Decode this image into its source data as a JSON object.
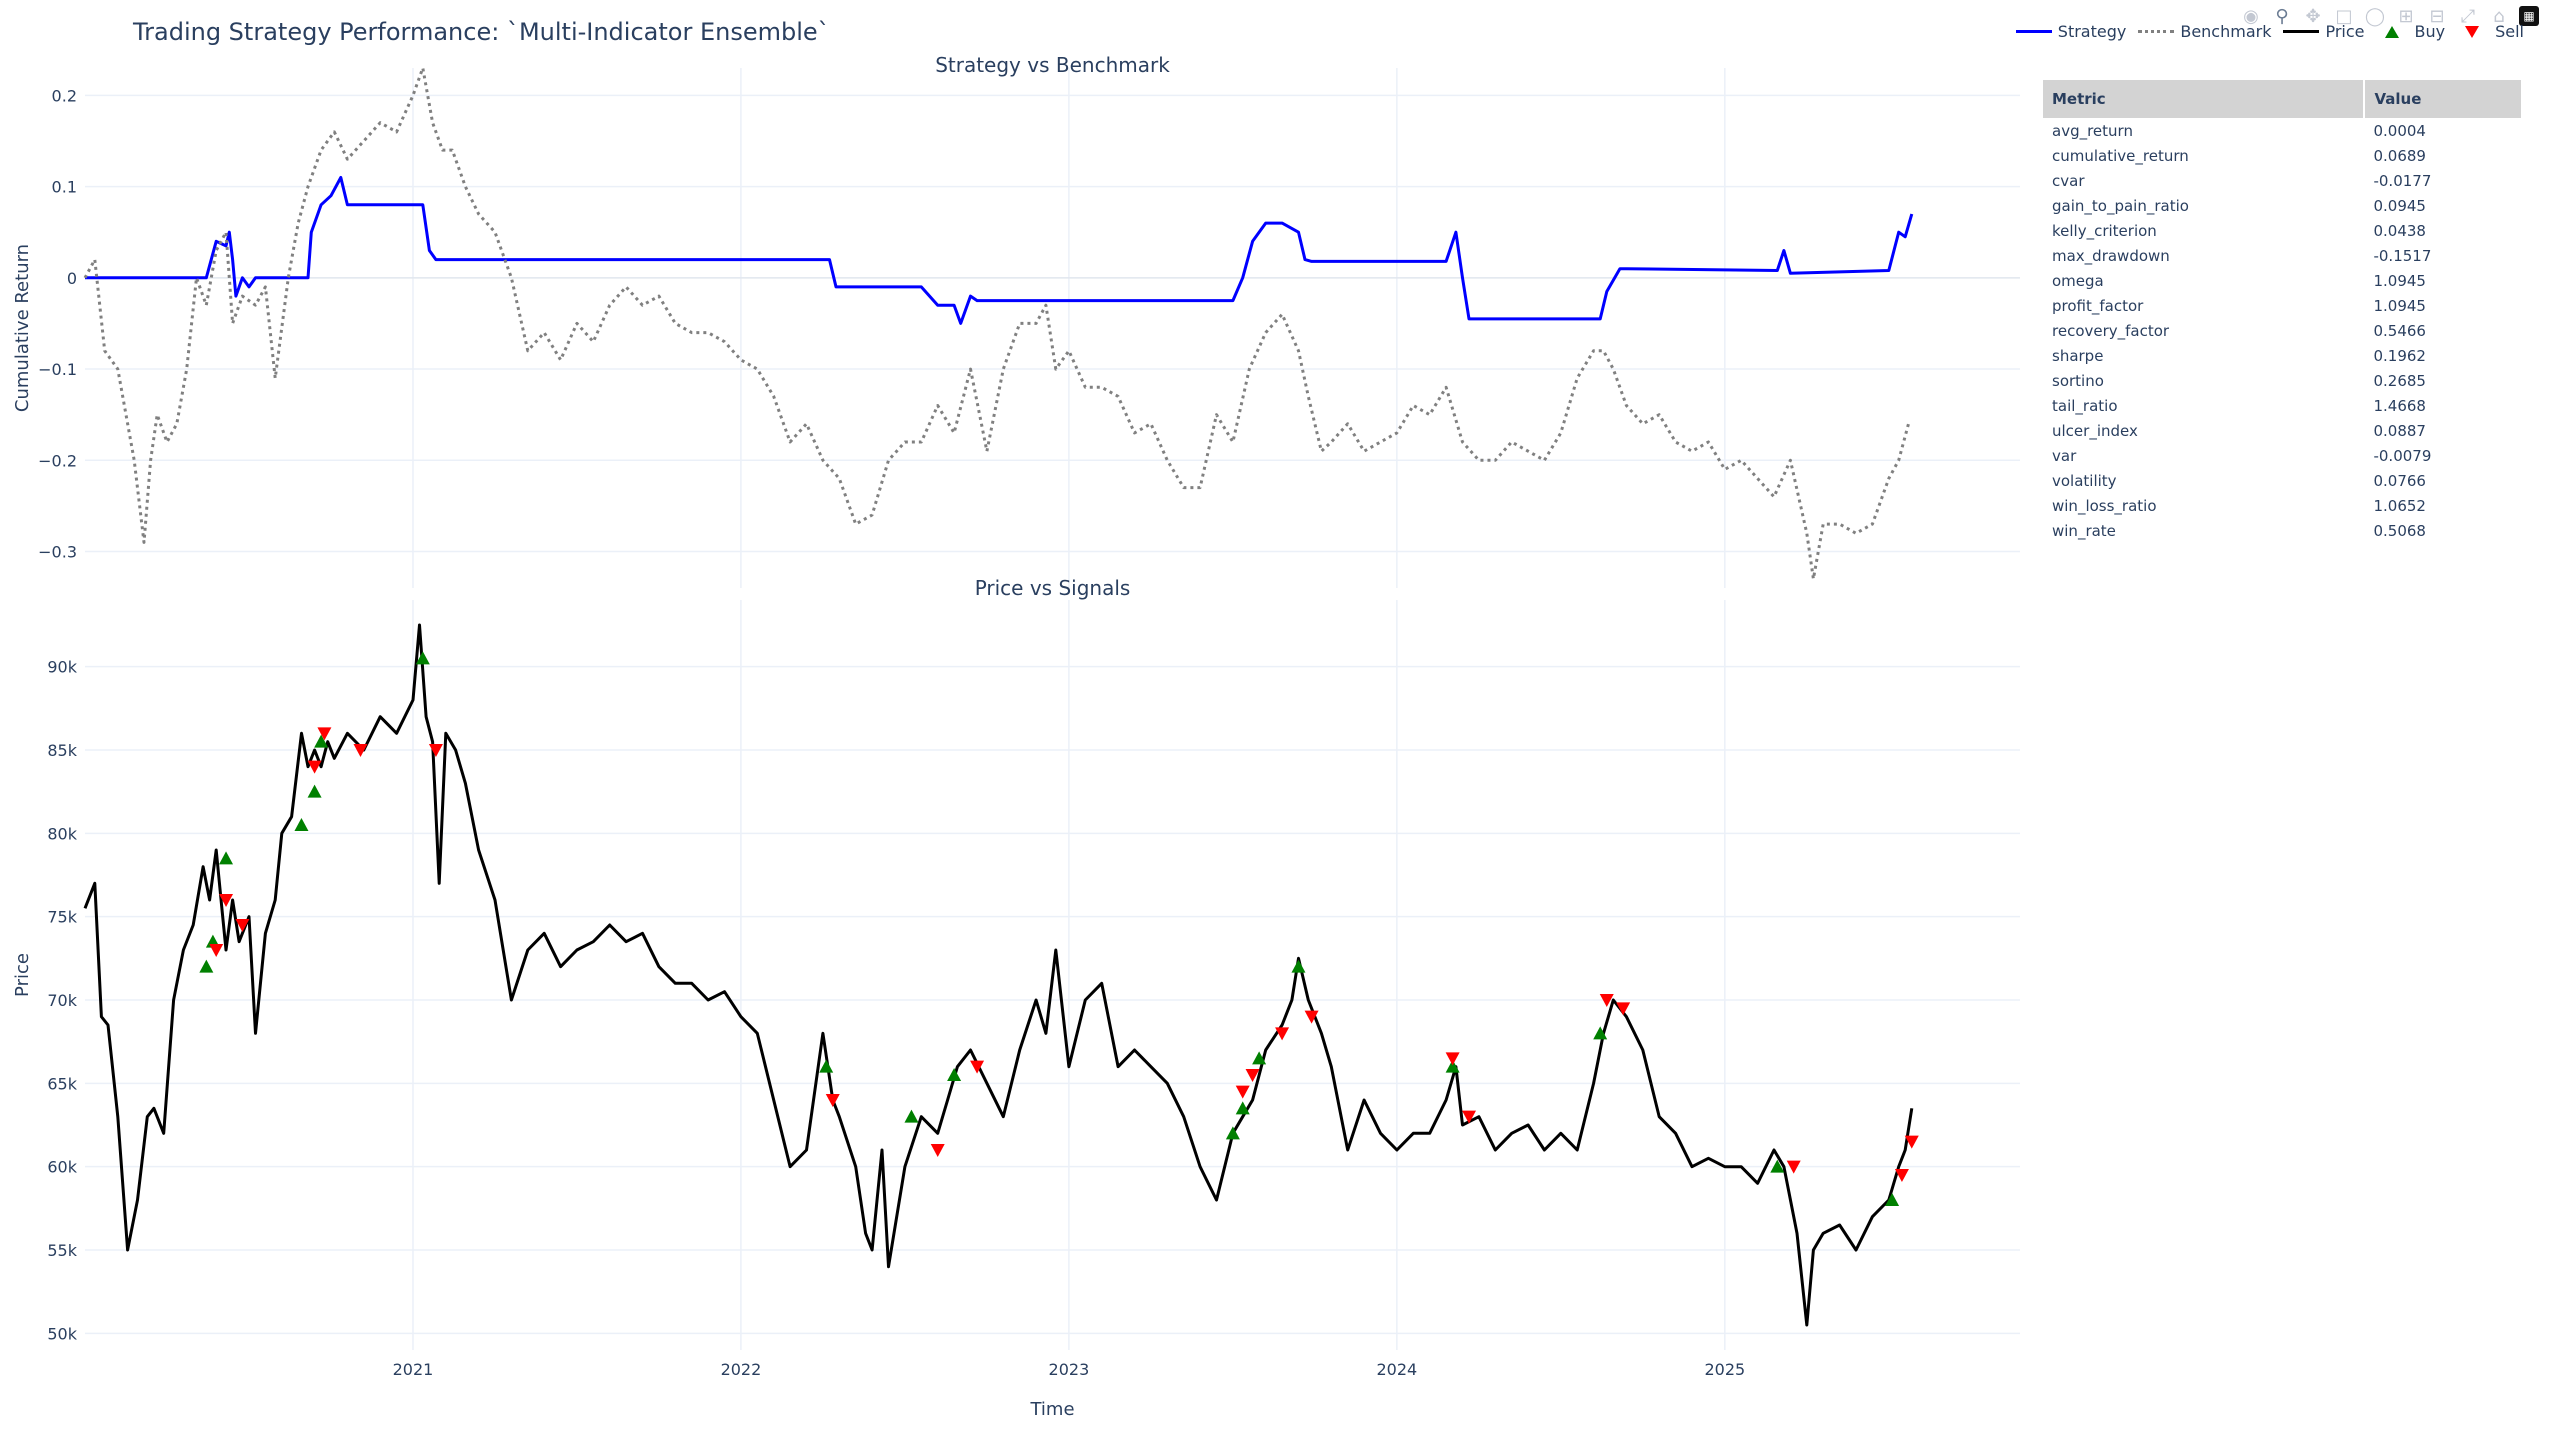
{
  "title": "Trading Strategy Performance: `Multi-Indicator Ensemble`",
  "modebar": [
    "camera-icon",
    "zoom-icon",
    "pan-icon",
    "box-select-icon",
    "lasso-icon",
    "zoom-in-icon",
    "zoom-out-icon",
    "autoscale-icon",
    "reset-axes-icon",
    "plotly-logo-icon"
  ],
  "legend": {
    "strategy": "Strategy",
    "benchmark": "Benchmark",
    "price": "Price",
    "buy": "Buy",
    "sell": "Sell"
  },
  "colors": {
    "strategy": "#0000ff",
    "benchmark": "#808080",
    "price": "#000000",
    "buy": "#008000",
    "sell": "#ff0000",
    "grid": "#ebf0f8",
    "header_bg": "#d3d3d3"
  },
  "table": {
    "headers": [
      "Metric",
      "Value"
    ],
    "rows": [
      [
        "avg_return",
        "0.0004"
      ],
      [
        "cumulative_return",
        "0.0689"
      ],
      [
        "cvar",
        "-0.0177"
      ],
      [
        "gain_to_pain_ratio",
        "0.0945"
      ],
      [
        "kelly_criterion",
        "0.0438"
      ],
      [
        "max_drawdown",
        "-0.1517"
      ],
      [
        "omega",
        "1.0945"
      ],
      [
        "profit_factor",
        "1.0945"
      ],
      [
        "recovery_factor",
        "0.5466"
      ],
      [
        "sharpe",
        "0.1962"
      ],
      [
        "sortino",
        "0.2685"
      ],
      [
        "tail_ratio",
        "1.4668"
      ],
      [
        "ulcer_index",
        "0.0887"
      ],
      [
        "var",
        "-0.0079"
      ],
      [
        "volatility",
        "0.0766"
      ],
      [
        "win_loss_ratio",
        "1.0652"
      ],
      [
        "win_rate",
        "0.5068"
      ]
    ]
  },
  "chart_data": [
    {
      "type": "line",
      "title": "Strategy vs Benchmark",
      "xlabel": "",
      "ylabel": "Cumulative Return",
      "xlim": [
        2020.0,
        2025.9
      ],
      "ylim": [
        -0.34,
        0.23
      ],
      "yticks": [
        0.2,
        0.1,
        0,
        -0.1,
        -0.2,
        -0.3
      ],
      "ytick_labels": [
        "0.2",
        "0.1",
        "0",
        "−0.1",
        "−0.2",
        "−0.3"
      ],
      "xticks": [
        2021,
        2022,
        2023,
        2024,
        2025
      ],
      "series": [
        {
          "name": "Strategy",
          "style": "solid",
          "color": "#0000ff",
          "x": [
            2020.0,
            2020.37,
            2020.4,
            2020.43,
            2020.44,
            2020.45,
            2020.46,
            2020.48,
            2020.5,
            2020.52,
            2020.55,
            2020.6,
            2020.68,
            2020.69,
            2020.72,
            2020.75,
            2020.78,
            2020.8,
            2020.85,
            2021.03,
            2021.05,
            2021.07,
            2022.27,
            2022.29,
            2022.55,
            2022.6,
            2022.65,
            2022.67,
            2022.7,
            2022.72,
            2023.5,
            2023.53,
            2023.56,
            2023.6,
            2023.65,
            2023.7,
            2023.72,
            2023.74,
            2024.15,
            2024.18,
            2024.2,
            2024.22,
            2024.62,
            2024.64,
            2024.68,
            2024.7,
            2025.16,
            2025.18,
            2025.2,
            2025.5,
            2025.53,
            2025.55,
            2025.57
          ],
          "y": [
            0.0,
            0.0,
            0.04,
            0.035,
            0.05,
            0.02,
            -0.02,
            0.0,
            -0.01,
            0.0,
            0.0,
            0.0,
            0.0,
            0.05,
            0.08,
            0.09,
            0.11,
            0.08,
            0.08,
            0.08,
            0.03,
            0.02,
            0.02,
            -0.01,
            -0.01,
            -0.03,
            -0.03,
            -0.05,
            -0.02,
            -0.025,
            -0.025,
            0.0,
            0.04,
            0.06,
            0.06,
            0.05,
            0.02,
            0.018,
            0.018,
            0.05,
            0.0,
            -0.045,
            -0.045,
            -0.015,
            0.01,
            0.01,
            0.008,
            0.03,
            0.005,
            0.008,
            0.05,
            0.045,
            0.07
          ]
        },
        {
          "name": "Benchmark",
          "style": "dotted",
          "color": "#808080",
          "x": [
            2020.0,
            2020.03,
            2020.06,
            2020.1,
            2020.15,
            2020.18,
            2020.2,
            2020.22,
            2020.25,
            2020.28,
            2020.31,
            2020.34,
            2020.37,
            2020.4,
            2020.43,
            2020.45,
            2020.48,
            2020.52,
            2020.55,
            2020.58,
            2020.62,
            2020.65,
            2020.68,
            2020.72,
            2020.76,
            2020.8,
            2020.85,
            2020.9,
            2020.95,
            2021.0,
            2021.03,
            2021.06,
            2021.09,
            2021.12,
            2021.16,
            2021.2,
            2021.25,
            2021.3,
            2021.35,
            2021.4,
            2021.45,
            2021.5,
            2021.55,
            2021.6,
            2021.65,
            2021.7,
            2021.75,
            2021.8,
            2021.85,
            2021.9,
            2021.95,
            2022.0,
            2022.05,
            2022.1,
            2022.15,
            2022.2,
            2022.25,
            2022.3,
            2022.35,
            2022.4,
            2022.45,
            2022.5,
            2022.55,
            2022.6,
            2022.65,
            2022.7,
            2022.75,
            2022.8,
            2022.85,
            2022.9,
            2022.93,
            2022.96,
            2023.0,
            2023.05,
            2023.1,
            2023.15,
            2023.2,
            2023.25,
            2023.3,
            2023.35,
            2023.4,
            2023.45,
            2023.5,
            2023.55,
            2023.6,
            2023.65,
            2023.7,
            2023.73,
            2023.77,
            2023.8,
            2023.85,
            2023.9,
            2023.95,
            2024.0,
            2024.05,
            2024.1,
            2024.15,
            2024.2,
            2024.25,
            2024.3,
            2024.35,
            2024.4,
            2024.45,
            2024.5,
            2024.55,
            2024.6,
            2024.63,
            2024.66,
            2024.7,
            2024.75,
            2024.8,
            2024.85,
            2024.9,
            2024.95,
            2025.0,
            2025.05,
            2025.1,
            2025.15,
            2025.2,
            2025.25,
            2025.27,
            2025.3,
            2025.35,
            2025.4,
            2025.45,
            2025.5,
            2025.53,
            2025.56
          ],
          "y": [
            0.0,
            0.02,
            -0.08,
            -0.1,
            -0.2,
            -0.29,
            -0.2,
            -0.15,
            -0.18,
            -0.16,
            -0.1,
            0.0,
            -0.03,
            0.03,
            0.05,
            -0.05,
            -0.02,
            -0.03,
            -0.01,
            -0.11,
            0.0,
            0.06,
            0.1,
            0.14,
            0.16,
            0.13,
            0.15,
            0.17,
            0.16,
            0.2,
            0.23,
            0.17,
            0.14,
            0.14,
            0.1,
            0.07,
            0.05,
            0.0,
            -0.08,
            -0.06,
            -0.09,
            -0.05,
            -0.07,
            -0.03,
            -0.01,
            -0.03,
            -0.02,
            -0.05,
            -0.06,
            -0.06,
            -0.07,
            -0.09,
            -0.1,
            -0.13,
            -0.18,
            -0.16,
            -0.2,
            -0.22,
            -0.27,
            -0.26,
            -0.2,
            -0.18,
            -0.18,
            -0.14,
            -0.17,
            -0.1,
            -0.19,
            -0.1,
            -0.05,
            -0.05,
            -0.03,
            -0.1,
            -0.08,
            -0.12,
            -0.12,
            -0.13,
            -0.17,
            -0.16,
            -0.2,
            -0.23,
            -0.23,
            -0.15,
            -0.18,
            -0.1,
            -0.06,
            -0.04,
            -0.08,
            -0.13,
            -0.19,
            -0.18,
            -0.16,
            -0.19,
            -0.18,
            -0.17,
            -0.14,
            -0.15,
            -0.12,
            -0.18,
            -0.2,
            -0.2,
            -0.18,
            -0.19,
            -0.2,
            -0.17,
            -0.11,
            -0.08,
            -0.08,
            -0.1,
            -0.14,
            -0.16,
            -0.15,
            -0.18,
            -0.19,
            -0.18,
            -0.21,
            -0.2,
            -0.22,
            -0.24,
            -0.2,
            -0.28,
            -0.33,
            -0.27,
            -0.27,
            -0.28,
            -0.27,
            -0.22,
            -0.2,
            -0.16
          ]
        }
      ]
    },
    {
      "type": "line",
      "title": "Price vs Signals",
      "xlabel": "Time",
      "ylabel": "Price",
      "xlim": [
        2020.0,
        2025.9
      ],
      "ylim": [
        49000,
        94000
      ],
      "yticks": [
        90000,
        85000,
        80000,
        75000,
        70000,
        65000,
        60000,
        55000,
        50000
      ],
      "ytick_labels": [
        "90k",
        "85k",
        "80k",
        "75k",
        "70k",
        "65k",
        "60k",
        "55k",
        "50k"
      ],
      "xticks": [
        2021,
        2022,
        2023,
        2024,
        2025
      ],
      "xtick_labels": [
        "2021",
        "2022",
        "2023",
        "2024",
        "2025"
      ],
      "series": [
        {
          "name": "Price",
          "color": "#000000",
          "x": [
            2020.0,
            2020.03,
            2020.05,
            2020.07,
            2020.1,
            2020.13,
            2020.16,
            2020.19,
            2020.21,
            2020.24,
            2020.27,
            2020.3,
            2020.33,
            2020.36,
            2020.38,
            2020.4,
            2020.42,
            2020.43,
            2020.45,
            2020.47,
            2020.5,
            2020.52,
            2020.55,
            2020.58,
            2020.6,
            2020.63,
            2020.66,
            2020.68,
            2020.7,
            2020.72,
            2020.74,
            2020.76,
            2020.8,
            2020.85,
            2020.9,
            2020.95,
            2021.0,
            2021.02,
            2021.04,
            2021.06,
            2021.08,
            2021.1,
            2021.13,
            2021.16,
            2021.2,
            2021.25,
            2021.3,
            2021.35,
            2021.4,
            2021.45,
            2021.5,
            2021.55,
            2021.6,
            2021.65,
            2021.7,
            2021.75,
            2021.8,
            2021.85,
            2021.9,
            2021.95,
            2022.0,
            2022.05,
            2022.1,
            2022.15,
            2022.2,
            2022.25,
            2022.28,
            2022.3,
            2022.35,
            2022.38,
            2022.4,
            2022.43,
            2022.45,
            2022.5,
            2022.55,
            2022.6,
            2022.63,
            2022.66,
            2022.7,
            2022.75,
            2022.8,
            2022.85,
            2022.9,
            2022.93,
            2022.96,
            2023.0,
            2023.05,
            2023.1,
            2023.15,
            2023.2,
            2023.25,
            2023.3,
            2023.35,
            2023.4,
            2023.45,
            2023.5,
            2023.53,
            2023.56,
            2023.6,
            2023.65,
            2023.68,
            2023.7,
            2023.73,
            2023.77,
            2023.8,
            2023.85,
            2023.9,
            2023.95,
            2024.0,
            2024.05,
            2024.1,
            2024.15,
            2024.18,
            2024.2,
            2024.25,
            2024.3,
            2024.35,
            2024.4,
            2024.45,
            2024.5,
            2024.55,
            2024.6,
            2024.63,
            2024.66,
            2024.7,
            2024.75,
            2024.8,
            2024.85,
            2024.9,
            2024.95,
            2025.0,
            2025.05,
            2025.1,
            2025.15,
            2025.18,
            2025.22,
            2025.25,
            2025.27,
            2025.3,
            2025.35,
            2025.4,
            2025.45,
            2025.5,
            2025.53,
            2025.55,
            2025.57
          ],
          "y": [
            75500,
            77000,
            69000,
            68500,
            63000,
            55000,
            58000,
            63000,
            63500,
            62000,
            70000,
            73000,
            74500,
            78000,
            76000,
            79000,
            75000,
            73000,
            76000,
            73500,
            75000,
            68000,
            74000,
            76000,
            80000,
            81000,
            86000,
            84000,
            85000,
            84000,
            85500,
            84500,
            86000,
            85000,
            87000,
            86000,
            88000,
            92500,
            87000,
            85500,
            77000,
            86000,
            85000,
            83000,
            79000,
            76000,
            70000,
            73000,
            74000,
            72000,
            73000,
            73500,
            74500,
            73500,
            74000,
            72000,
            71000,
            71000,
            70000,
            70500,
            69000,
            68000,
            64000,
            60000,
            61000,
            68000,
            64000,
            63000,
            60000,
            56000,
            55000,
            61000,
            54000,
            60000,
            63000,
            62000,
            64000,
            66000,
            67000,
            65000,
            63000,
            67000,
            70000,
            68000,
            73000,
            66000,
            70000,
            71000,
            66000,
            67000,
            66000,
            65000,
            63000,
            60000,
            58000,
            62000,
            63000,
            64000,
            67000,
            68500,
            70000,
            72500,
            70000,
            68000,
            66000,
            61000,
            64000,
            62000,
            61000,
            62000,
            62000,
            64000,
            66000,
            62500,
            63000,
            61000,
            62000,
            62500,
            61000,
            62000,
            61000,
            65000,
            68000,
            70000,
            69000,
            67000,
            63000,
            62000,
            60000,
            60500,
            60000,
            60000,
            59000,
            61000,
            60000,
            56000,
            50500,
            55000,
            56000,
            56500,
            55000,
            57000,
            58000,
            60000,
            61000,
            63500
          ]
        },
        {
          "name": "Buy",
          "marker": "triangle-up",
          "color": "#008000",
          "x": [
            2020.37,
            2020.39,
            2020.43,
            2020.66,
            2020.7,
            2020.72,
            2021.03,
            2022.26,
            2022.52,
            2022.65,
            2023.5,
            2023.53,
            2023.58,
            2023.7,
            2024.17,
            2024.62,
            2025.16,
            2025.51
          ],
          "y": [
            72000,
            73500,
            78500,
            80500,
            82500,
            85500,
            90500,
            66000,
            63000,
            65500,
            62000,
            63500,
            66500,
            72000,
            66000,
            68000,
            60000,
            58000
          ]
        },
        {
          "name": "Sell",
          "marker": "triangle-down",
          "color": "#ff0000",
          "x": [
            2020.4,
            2020.43,
            2020.48,
            2020.7,
            2020.73,
            2020.84,
            2021.07,
            2022.28,
            2022.6,
            2022.72,
            2023.53,
            2023.56,
            2023.65,
            2023.74,
            2024.17,
            2024.22,
            2024.64,
            2024.69,
            2025.21,
            2025.54,
            2025.57
          ],
          "y": [
            73000,
            76000,
            74500,
            84000,
            86000,
            85000,
            85000,
            64000,
            61000,
            66000,
            64500,
            65500,
            68000,
            69000,
            66500,
            63000,
            70000,
            69500,
            60000,
            59500,
            61500
          ]
        }
      ]
    }
  ]
}
